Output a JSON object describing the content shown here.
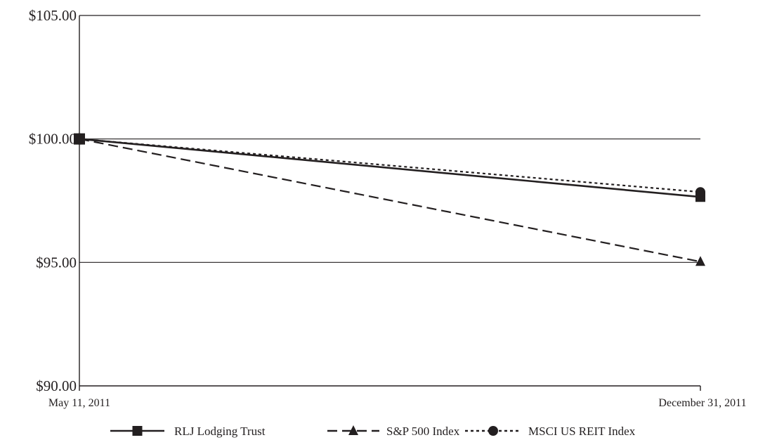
{
  "chart_data": {
    "type": "line",
    "title": "",
    "xlabel": "",
    "ylabel": "",
    "categories": [
      "May 11, 2011",
      "December 31, 2011"
    ],
    "ylim": [
      90,
      105
    ],
    "yticks": [
      {
        "value": 90,
        "label": "$90.00"
      },
      {
        "value": 95,
        "label": "$95.00"
      },
      {
        "value": 100,
        "label": "$100.00"
      },
      {
        "value": 105,
        "label": "$105.00"
      }
    ],
    "grid": "horizontal",
    "legend_position": "bottom",
    "series": [
      {
        "name": "RLJ Lodging Trust",
        "values": [
          100.0,
          97.65
        ],
        "line_style": "solid",
        "marker": "square",
        "color": "#231f20"
      },
      {
        "name": "S&P 500 Index",
        "values": [
          100.0,
          95.03
        ],
        "line_style": "dashed",
        "marker": "triangle",
        "color": "#231f20"
      },
      {
        "name": "MSCI US REIT Index",
        "values": [
          100.0,
          97.85
        ],
        "line_style": "dotted",
        "marker": "circle",
        "color": "#231f20"
      }
    ]
  }
}
